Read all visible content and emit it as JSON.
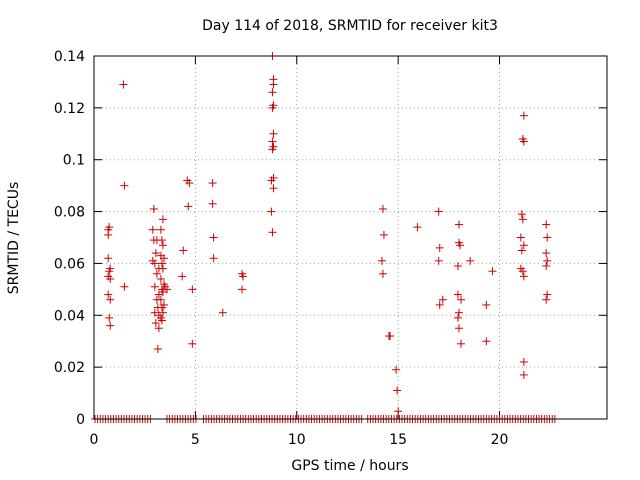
{
  "chart_data": {
    "type": "scatter",
    "title": "Day 114 of 2018, SRMTID for receiver kit3",
    "xlabel": "GPS time / hours",
    "ylabel": "SRMTID / TECUs",
    "xlim": [
      0,
      25.3
    ],
    "ylim": [
      0,
      0.14
    ],
    "xticks": [
      0,
      5,
      10,
      15,
      20
    ],
    "xtick_labels": [
      "0",
      "5",
      "10",
      "15",
      "20"
    ],
    "yticks": [
      0,
      0.02,
      0.04,
      0.06,
      0.08,
      0.1,
      0.12,
      0.14
    ],
    "ytick_labels": [
      "0",
      "0.02",
      "0.04",
      "0.06",
      "0.08",
      "0.1",
      "0.12",
      "0.14"
    ],
    "grid": true,
    "marker": "+",
    "series": [
      {
        "name": "SRMTID",
        "color": "#cc0000",
        "points": [
          [
            0.7,
            0.073
          ],
          [
            0.7,
            0.071
          ],
          [
            0.75,
            0.074
          ],
          [
            0.7,
            0.062
          ],
          [
            0.8,
            0.058
          ],
          [
            0.75,
            0.057
          ],
          [
            0.7,
            0.055
          ],
          [
            0.8,
            0.054
          ],
          [
            0.7,
            0.048
          ],
          [
            0.8,
            0.046
          ],
          [
            0.75,
            0.039
          ],
          [
            0.8,
            0.036
          ],
          [
            1.45,
            0.129
          ],
          [
            1.5,
            0.09
          ],
          [
            1.5,
            0.051
          ],
          [
            2.95,
            0.081
          ],
          [
            2.9,
            0.073
          ],
          [
            2.95,
            0.069
          ],
          [
            3.1,
            0.069
          ],
          [
            3.05,
            0.064
          ],
          [
            2.9,
            0.061
          ],
          [
            3.0,
            0.06
          ],
          [
            3.2,
            0.058
          ],
          [
            3.1,
            0.056
          ],
          [
            3.0,
            0.051
          ],
          [
            3.2,
            0.048
          ],
          [
            3.1,
            0.046
          ],
          [
            3.15,
            0.043
          ],
          [
            3.0,
            0.041
          ],
          [
            3.2,
            0.04
          ],
          [
            3.05,
            0.037
          ],
          [
            3.2,
            0.035
          ],
          [
            3.15,
            0.027
          ],
          [
            3.4,
            0.077
          ],
          [
            3.3,
            0.073
          ],
          [
            3.35,
            0.069
          ],
          [
            3.4,
            0.067
          ],
          [
            3.3,
            0.063
          ],
          [
            3.45,
            0.062
          ],
          [
            3.35,
            0.06
          ],
          [
            3.4,
            0.058
          ],
          [
            3.3,
            0.054
          ],
          [
            3.45,
            0.052
          ],
          [
            3.35,
            0.05
          ],
          [
            3.4,
            0.049
          ],
          [
            3.3,
            0.046
          ],
          [
            3.45,
            0.044
          ],
          [
            3.35,
            0.043
          ],
          [
            3.4,
            0.041
          ],
          [
            3.3,
            0.039
          ],
          [
            3.35,
            0.038
          ],
          [
            3.5,
            0.051
          ],
          [
            3.6,
            0.05
          ],
          [
            4.4,
            0.065
          ],
          [
            4.35,
            0.055
          ],
          [
            4.6,
            0.092
          ],
          [
            4.7,
            0.091
          ],
          [
            4.65,
            0.082
          ],
          [
            4.85,
            0.05
          ],
          [
            4.85,
            0.029
          ],
          [
            5.85,
            0.091
          ],
          [
            5.85,
            0.083
          ],
          [
            5.9,
            0.07
          ],
          [
            5.9,
            0.062
          ],
          [
            6.35,
            0.041
          ],
          [
            7.3,
            0.056
          ],
          [
            7.35,
            0.055
          ],
          [
            7.3,
            0.05
          ],
          [
            8.8,
            0.14
          ],
          [
            8.85,
            0.131
          ],
          [
            8.85,
            0.129
          ],
          [
            8.8,
            0.126
          ],
          [
            8.85,
            0.121
          ],
          [
            8.8,
            0.12
          ],
          [
            8.85,
            0.11
          ],
          [
            8.8,
            0.107
          ],
          [
            8.85,
            0.105
          ],
          [
            8.8,
            0.104
          ],
          [
            8.85,
            0.093
          ],
          [
            8.75,
            0.092
          ],
          [
            8.85,
            0.089
          ],
          [
            8.75,
            0.08
          ],
          [
            8.8,
            0.072
          ],
          [
            14.25,
            0.081
          ],
          [
            14.3,
            0.071
          ],
          [
            14.2,
            0.061
          ],
          [
            14.25,
            0.056
          ],
          [
            14.55,
            0.032
          ],
          [
            14.6,
            0.032
          ],
          [
            14.9,
            0.019
          ],
          [
            14.95,
            0.011
          ],
          [
            15.0,
            0.003
          ],
          [
            15.95,
            0.074
          ],
          [
            17.0,
            0.08
          ],
          [
            17.05,
            0.066
          ],
          [
            17.0,
            0.061
          ],
          [
            17.2,
            0.046
          ],
          [
            17.05,
            0.044
          ],
          [
            18.0,
            0.075
          ],
          [
            18.0,
            0.068
          ],
          [
            18.05,
            0.067
          ],
          [
            17.95,
            0.059
          ],
          [
            17.95,
            0.048
          ],
          [
            18.1,
            0.046
          ],
          [
            18.0,
            0.041
          ],
          [
            17.95,
            0.039
          ],
          [
            18.0,
            0.035
          ],
          [
            18.1,
            0.029
          ],
          [
            18.55,
            0.061
          ],
          [
            19.35,
            0.044
          ],
          [
            19.35,
            0.03
          ],
          [
            19.65,
            0.057
          ],
          [
            21.2,
            0.117
          ],
          [
            21.15,
            0.108
          ],
          [
            21.2,
            0.107
          ],
          [
            21.1,
            0.079
          ],
          [
            21.15,
            0.077
          ],
          [
            21.05,
            0.07
          ],
          [
            21.2,
            0.067
          ],
          [
            21.1,
            0.065
          ],
          [
            21.05,
            0.058
          ],
          [
            21.15,
            0.057
          ],
          [
            21.2,
            0.055
          ],
          [
            21.2,
            0.022
          ],
          [
            21.2,
            0.017
          ],
          [
            22.3,
            0.075
          ],
          [
            22.35,
            0.07
          ],
          [
            22.3,
            0.064
          ],
          [
            22.35,
            0.061
          ],
          [
            22.3,
            0.059
          ],
          [
            22.35,
            0.048
          ],
          [
            22.3,
            0.046
          ]
        ],
        "zero_runs": [
          [
            0.05,
            2.85
          ],
          [
            3.6,
            5.05
          ],
          [
            5.4,
            13.3
          ],
          [
            13.5,
            22.85
          ]
        ]
      }
    ]
  }
}
